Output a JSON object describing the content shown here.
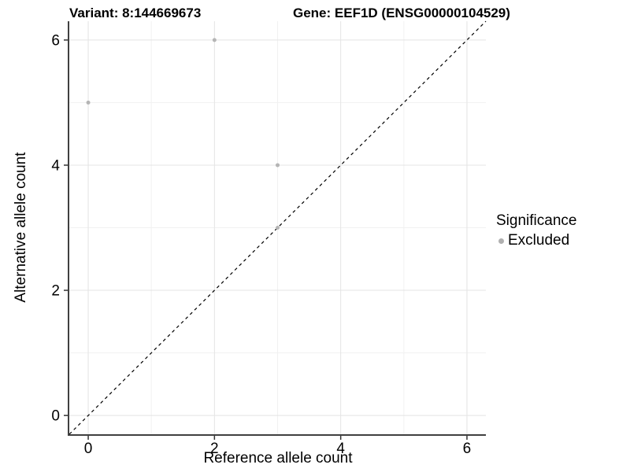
{
  "chart_data": {
    "type": "scatter",
    "title_left": "Variant: 8:144669673",
    "title_right": "Gene: EEF1D (ENSG00000104529)",
    "xlabel": "Reference allele count",
    "ylabel": "Alternative allele count",
    "xlim": [
      -0.3,
      6.3
    ],
    "ylim": [
      -0.3,
      6.3
    ],
    "x_major_ticks": [
      0,
      2,
      4,
      6
    ],
    "y_major_ticks": [
      0,
      2,
      4,
      6
    ],
    "x_minor_ticks": [
      1,
      3,
      5
    ],
    "y_minor_ticks": [
      1,
      3,
      5
    ],
    "grid": true,
    "legend_position": "right",
    "reference_line": {
      "type": "identity",
      "slope": 1,
      "intercept": 0,
      "style": "dashed",
      "color": "#000000"
    },
    "series": [
      {
        "name": "Excluded",
        "color": "#b5b5b5",
        "points": [
          [
            0,
            5
          ],
          [
            2,
            6
          ],
          [
            3,
            4
          ],
          [
            3,
            3
          ]
        ]
      }
    ],
    "legend": {
      "title": "Significance",
      "items": [
        {
          "label": "Excluded",
          "color": "#b0b0b0"
        }
      ]
    },
    "style": {
      "background": "#ffffff",
      "grid_major_color": "#e4e4e4",
      "grid_minor_color": "#f1f1f1",
      "axis_line_color": "#404040",
      "tick_color": "#333333",
      "tick_label_color": "#000000",
      "tick_label_size": 19
    }
  }
}
